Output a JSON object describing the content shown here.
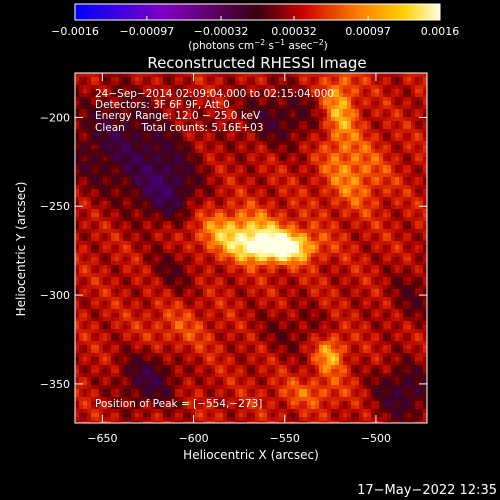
{
  "chart_data": {
    "type": "heatmap",
    "title": "Reconstructed RHESSI Image",
    "xlabel": "Heliocentric X (arcsec)",
    "ylabel": "Heliocentric Y (arcsec)",
    "xlim": [
      -665,
      -472
    ],
    "ylim": [
      -372,
      -175
    ],
    "x_ticks": [
      -650,
      -600,
      -550,
      -500
    ],
    "y_ticks": [
      -350,
      -300,
      -250,
      -200
    ],
    "x_tick_labels": [
      "−650",
      "−600",
      "−550",
      "−500"
    ],
    "y_tick_labels": [
      "−350",
      "−300",
      "−250",
      "−200"
    ],
    "colorbar": {
      "range": [
        -0.0016,
        0.0016
      ],
      "ticks": [
        -0.0016,
        -0.00097,
        -0.00032,
        0.00032,
        0.00097,
        0.0016
      ],
      "tick_labels": [
        "−0.0016",
        "−0.00097",
        "−0.00032",
        "0.00032",
        "0.00097",
        "0.0016"
      ],
      "unit_parts": [
        "(photons cm",
        "−2",
        " s",
        "−1",
        " asec",
        "−2",
        ")"
      ]
    },
    "annotations": [
      "24−Sep−2014 02:09:04.000 to 02:15:04.000",
      "Detectors: 3F 6F 9F, Att 0",
      "Energy Range: 12.0 − 25.0 keV",
      "Clean     Total counts: 5.16E+03"
    ],
    "peak_label": "Position of Peak = [−554,−273]",
    "peak_position": [
      -554,
      -273
    ],
    "sources": [
      {
        "x": -554,
        "y": -273,
        "amp": 1.0,
        "sx": 14,
        "sy": 6
      },
      {
        "x": -575,
        "y": -265,
        "amp": 0.55,
        "sx": 18,
        "sy": 9
      },
      {
        "x": -520,
        "y": -195,
        "amp": 0.5,
        "sx": 7,
        "sy": 16
      },
      {
        "x": -512,
        "y": -232,
        "amp": 0.35,
        "sx": 12,
        "sy": 14
      },
      {
        "x": -525,
        "y": -333,
        "amp": 0.5,
        "sx": 6,
        "sy": 8
      },
      {
        "x": -535,
        "y": -355,
        "amp": 0.25,
        "sx": 14,
        "sy": 6
      },
      {
        "x": -610,
        "y": -320,
        "amp": 0.2,
        "sx": 14,
        "sy": 10
      },
      {
        "x": -640,
        "y": -215,
        "amp": -0.45,
        "sx": 22,
        "sy": 20
      },
      {
        "x": -615,
        "y": -240,
        "amp": -0.5,
        "sx": 12,
        "sy": 14
      },
      {
        "x": -553,
        "y": -200,
        "amp": -0.35,
        "sx": 18,
        "sy": 12
      },
      {
        "x": -625,
        "y": -347,
        "amp": -0.45,
        "sx": 12,
        "sy": 12
      },
      {
        "x": -485,
        "y": -355,
        "amp": -0.45,
        "sx": 12,
        "sy": 12
      },
      {
        "x": -610,
        "y": -285,
        "amp": -0.25,
        "sx": 10,
        "sy": 10
      },
      {
        "x": -545,
        "y": -320,
        "amp": -0.2,
        "sx": 15,
        "sy": 10
      },
      {
        "x": -480,
        "y": -300,
        "amp": -0.25,
        "sx": 10,
        "sy": 12
      }
    ]
  },
  "timestamp": "17−May−2022 12:35"
}
